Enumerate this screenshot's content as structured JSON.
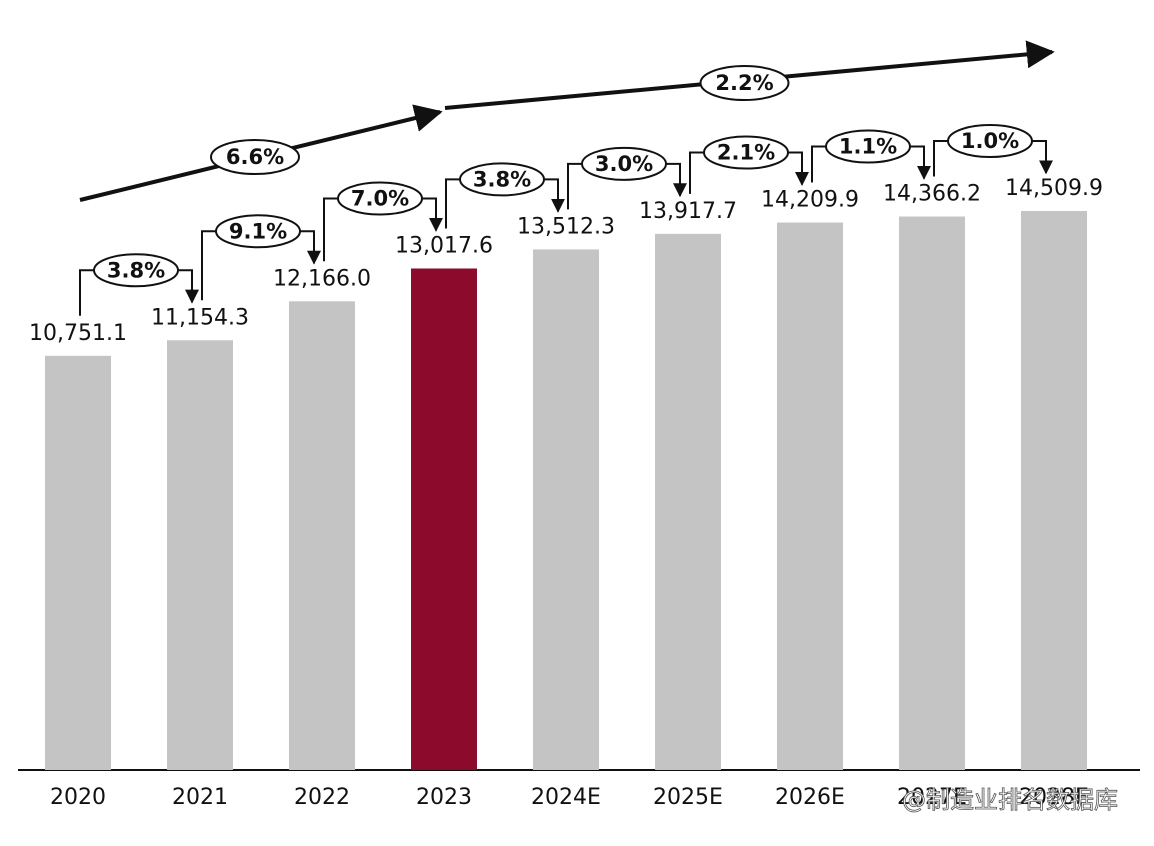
{
  "chart_data": {
    "type": "bar",
    "categories": [
      "2020",
      "2021",
      "2022",
      "2023",
      "2024E",
      "2025E",
      "2026E",
      "2027E",
      "2028E"
    ],
    "values": [
      10751.1,
      11154.3,
      12166.0,
      13017.6,
      13512.3,
      13917.7,
      14209.9,
      14366.2,
      14509.9
    ],
    "value_labels": [
      "10,751.1",
      "11,154.3",
      "12,166.0",
      "13,017.6",
      "13,512.3",
      "13,917.7",
      "14,209.9",
      "14,366.2",
      "14,509.9"
    ],
    "colors": [
      "#c4c4c4",
      "#c4c4c4",
      "#c4c4c4",
      "#8c0a2b",
      "#c4c4c4",
      "#c4c4c4",
      "#c4c4c4",
      "#c4c4c4",
      "#c4c4c4"
    ],
    "yoy_growth": [
      "3.8%",
      "9.1%",
      "7.0%",
      "3.8%",
      "3.0%",
      "2.1%",
      "1.1%",
      "1.0%"
    ],
    "cagr": [
      "6.6%",
      "2.2%"
    ],
    "watermark": "@制造业排名数据库"
  }
}
